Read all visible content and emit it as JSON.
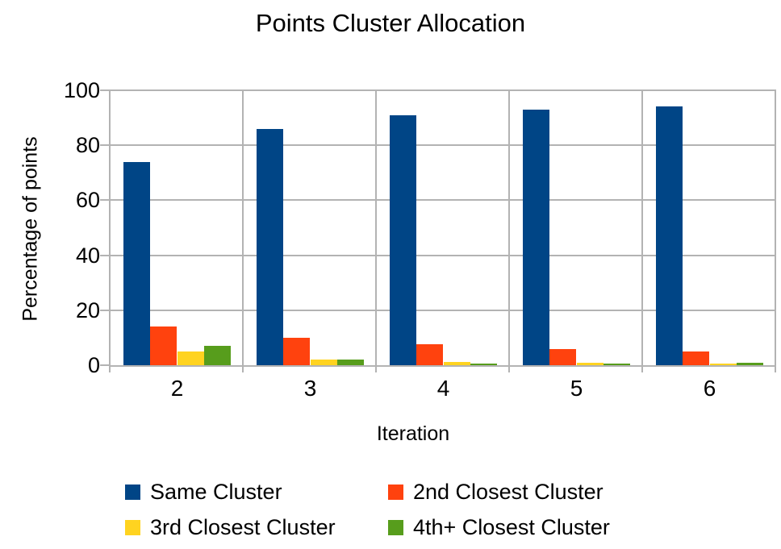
{
  "chart_data": {
    "type": "bar",
    "title": "Points Cluster Allocation",
    "xlabel": "Iteration",
    "ylabel": "Percentage of points",
    "categories": [
      "2",
      "3",
      "4",
      "5",
      "6"
    ],
    "series": [
      {
        "name": "Same Cluster",
        "color": "#004586",
        "values": [
          74,
          86,
          91,
          93,
          94
        ]
      },
      {
        "name": "2nd Closest Cluster",
        "color": "#FF420E",
        "values": [
          14,
          10,
          7.5,
          6,
          5
        ]
      },
      {
        "name": "3rd Closest Cluster",
        "color": "#FFD320",
        "values": [
          5,
          2,
          1.3,
          0.8,
          0.5
        ]
      },
      {
        "name": "4th+ Closest Cluster",
        "color": "#579D1C",
        "values": [
          7,
          2,
          0.7,
          0.7,
          0.9
        ]
      }
    ],
    "ylim": [
      0,
      100
    ],
    "yticks": [
      0,
      20,
      40,
      60,
      80,
      100
    ],
    "grid": true,
    "gridline_color": "#b3b3b3",
    "background_color": "#ffffff",
    "text_color": "#000000",
    "legend_position": "bottom"
  }
}
